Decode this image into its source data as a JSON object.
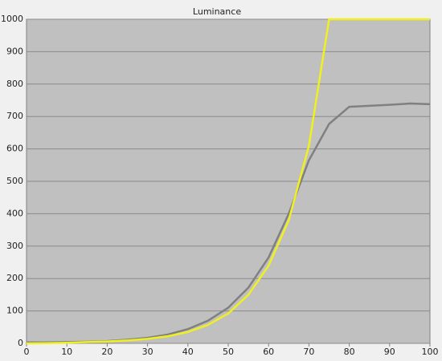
{
  "chart_data": {
    "type": "line",
    "title": "Luminance",
    "x": [
      0,
      5,
      10,
      15,
      20,
      25,
      30,
      35,
      40,
      45,
      50,
      55,
      60,
      65,
      70,
      75,
      80,
      85,
      90,
      95,
      100
    ],
    "series": [
      {
        "color": "#f0f020",
        "values": [
          0,
          0.5,
          2,
          4,
          6,
          9,
          14,
          22,
          35,
          57,
          92,
          150,
          240,
          380,
          610,
          1000,
          1000,
          1000,
          1000,
          1000,
          1000
        ]
      },
      {
        "color": "#808080",
        "values": [
          3,
          3,
          4,
          5,
          7,
          11,
          17,
          27,
          44,
          70,
          110,
          172,
          265,
          400,
          565,
          677,
          730,
          733,
          736,
          740,
          738
        ]
      }
    ],
    "xlim": [
      0,
      100
    ],
    "xticks": [
      0,
      10,
      20,
      30,
      40,
      50,
      60,
      70,
      80,
      90,
      100
    ],
    "ylim": [
      0,
      1000
    ],
    "yticks": [
      0,
      100,
      200,
      300,
      400,
      500,
      600,
      700,
      800,
      900,
      1000
    ],
    "grid": true
  }
}
